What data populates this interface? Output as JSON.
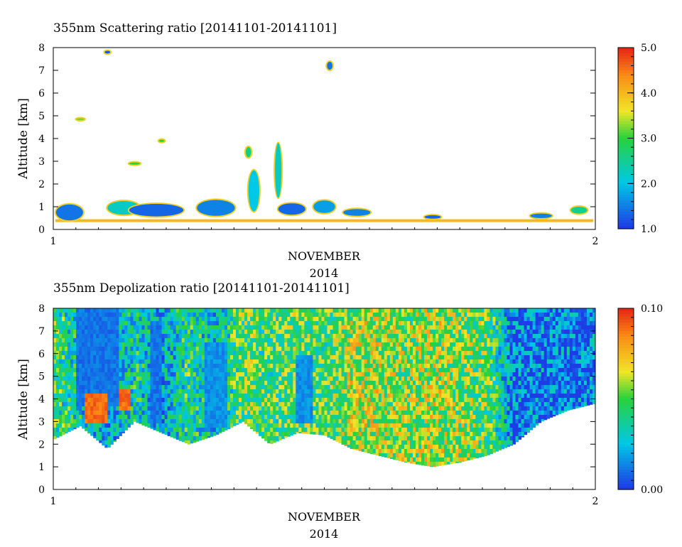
{
  "chart_data": [
    {
      "type": "heatmap",
      "title": "355nm Scattering ratio [20141101-20141101]",
      "ylabel": "Altitude [km]",
      "xlabel": "NOVEMBER",
      "xlabel2": "2014",
      "x_ticks": [
        "1",
        "2"
      ],
      "y_ticks": [
        "0",
        "1",
        "2",
        "3",
        "4",
        "5",
        "6",
        "7",
        "8"
      ],
      "ylim": [
        0,
        8
      ],
      "xlim": [
        1,
        2
      ],
      "colorbar": {
        "min": 1.0,
        "max": 5.0,
        "tick_labels": [
          "5.0",
          "4.0",
          "3.0",
          "2.0",
          "1.0"
        ],
        "tick_values": [
          5,
          4,
          3,
          2,
          1
        ]
      },
      "blobs": [
        {
          "x": 1.03,
          "y": 0.75,
          "w": 0.05,
          "h": 0.7,
          "v": 1.4
        },
        {
          "x": 1.13,
          "y": 0.95,
          "w": 0.06,
          "h": 0.6,
          "v": 2.2
        },
        {
          "x": 1.19,
          "y": 0.85,
          "w": 0.1,
          "h": 0.55,
          "v": 1.3
        },
        {
          "x": 1.3,
          "y": 0.95,
          "w": 0.07,
          "h": 0.7,
          "v": 1.5
        },
        {
          "x": 1.37,
          "y": 1.7,
          "w": 0.02,
          "h": 1.8,
          "v": 2.0
        },
        {
          "x": 1.415,
          "y": 2.6,
          "w": 0.012,
          "h": 2.4,
          "v": 2.2
        },
        {
          "x": 1.44,
          "y": 0.9,
          "w": 0.05,
          "h": 0.5,
          "v": 1.3
        },
        {
          "x": 1.5,
          "y": 1.0,
          "w": 0.04,
          "h": 0.55,
          "v": 1.7
        },
        {
          "x": 1.56,
          "y": 0.75,
          "w": 0.05,
          "h": 0.3,
          "v": 1.5
        },
        {
          "x": 1.7,
          "y": 0.55,
          "w": 0.03,
          "h": 0.15,
          "v": 1.3
        },
        {
          "x": 1.9,
          "y": 0.6,
          "w": 0.04,
          "h": 0.2,
          "v": 1.5
        },
        {
          "x": 1.97,
          "y": 0.85,
          "w": 0.03,
          "h": 0.3,
          "v": 2.5
        },
        {
          "x": 1.1,
          "y": 7.8,
          "w": 0.01,
          "h": 0.12,
          "v": 1.2
        },
        {
          "x": 1.51,
          "y": 7.2,
          "w": 0.01,
          "h": 0.35,
          "v": 1.4
        },
        {
          "x": 1.36,
          "y": 3.4,
          "w": 0.01,
          "h": 0.45,
          "v": 2.6
        },
        {
          "x": 1.2,
          "y": 3.9,
          "w": 0.01,
          "h": 0.1,
          "v": 3.0
        },
        {
          "x": 1.15,
          "y": 2.9,
          "w": 0.02,
          "h": 0.1,
          "v": 3.0
        },
        {
          "x": 1.05,
          "y": 4.85,
          "w": 0.015,
          "h": 0.08,
          "v": 3.2
        }
      ]
    },
    {
      "type": "heatmap",
      "title": "355nm Depolization ratio [20141101-20141101]",
      "ylabel": "Altitude [km]",
      "xlabel": "NOVEMBER",
      "xlabel2": "2014",
      "x_ticks": [
        "1",
        "2"
      ],
      "y_ticks": [
        "0",
        "1",
        "2",
        "3",
        "4",
        "5",
        "6",
        "7",
        "8"
      ],
      "ylim": [
        0,
        8
      ],
      "xlim": [
        1,
        2
      ],
      "colorbar": {
        "min": 0.0,
        "max": 0.1,
        "tick_labels": [
          "0.10",
          "0.00"
        ],
        "tick_values": [
          0.1,
          0.0
        ]
      },
      "base_profile": [
        {
          "x": 1.0,
          "base": 2.2,
          "v": 0.045
        },
        {
          "x": 1.05,
          "base": 2.8,
          "v": 0.03
        },
        {
          "x": 1.1,
          "base": 1.8,
          "v": 0.02
        },
        {
          "x": 1.15,
          "base": 3.0,
          "v": 0.035
        },
        {
          "x": 1.2,
          "base": 2.5,
          "v": 0.02
        },
        {
          "x": 1.25,
          "base": 2.0,
          "v": 0.04
        },
        {
          "x": 1.3,
          "base": 2.4,
          "v": 0.025
        },
        {
          "x": 1.35,
          "base": 3.0,
          "v": 0.05
        },
        {
          "x": 1.4,
          "base": 2.0,
          "v": 0.045
        },
        {
          "x": 1.45,
          "base": 2.5,
          "v": 0.05
        },
        {
          "x": 1.5,
          "base": 2.4,
          "v": 0.045
        },
        {
          "x": 1.55,
          "base": 1.8,
          "v": 0.06
        },
        {
          "x": 1.6,
          "base": 1.5,
          "v": 0.06
        },
        {
          "x": 1.65,
          "base": 1.2,
          "v": 0.055
        },
        {
          "x": 1.7,
          "base": 1.0,
          "v": 0.06
        },
        {
          "x": 1.75,
          "base": 1.2,
          "v": 0.055
        },
        {
          "x": 1.8,
          "base": 1.5,
          "v": 0.05
        },
        {
          "x": 1.85,
          "base": 2.0,
          "v": 0.012
        },
        {
          "x": 1.9,
          "base": 3.0,
          "v": 0.01
        },
        {
          "x": 1.95,
          "base": 3.5,
          "v": 0.012
        },
        {
          "x": 2.0,
          "base": 3.8,
          "v": 0.012
        }
      ],
      "low_bands": [
        {
          "x0": 1.04,
          "x1": 1.12,
          "y0": 3.7,
          "y1": 8.0,
          "v": 0.01
        },
        {
          "x0": 1.18,
          "x1": 1.2,
          "y0": 3.0,
          "y1": 7.5,
          "v": 0.01
        },
        {
          "x0": 1.28,
          "x1": 1.32,
          "y0": 2.8,
          "y1": 6.5,
          "v": 0.015
        },
        {
          "x0": 1.45,
          "x1": 1.48,
          "y0": 3.0,
          "y1": 6.0,
          "v": 0.015
        }
      ],
      "high_bands": [
        {
          "x0": 1.06,
          "x1": 1.1,
          "y0": 3.0,
          "y1": 4.3,
          "v": 0.09
        },
        {
          "x0": 1.12,
          "x1": 1.14,
          "y0": 3.5,
          "y1": 4.5,
          "v": 0.09
        }
      ]
    }
  ]
}
